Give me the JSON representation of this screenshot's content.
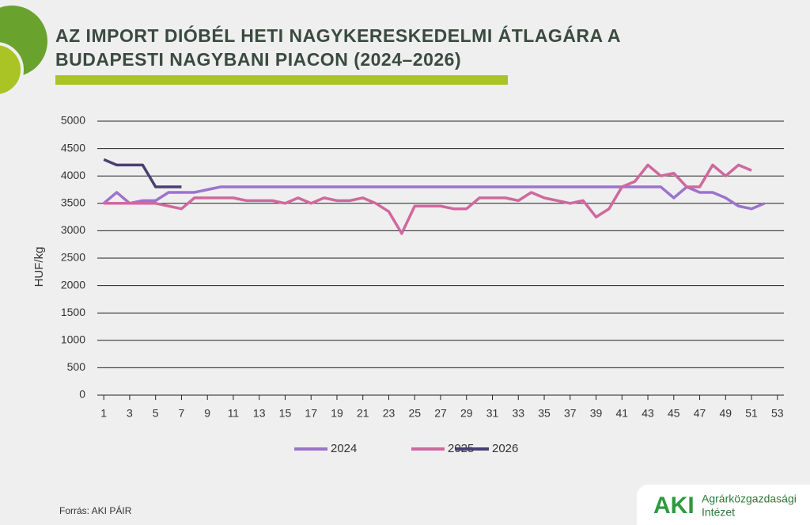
{
  "chart_data": {
    "type": "line",
    "title": "AZ IMPORT DIÓBÉL HETI NAGYKERESKEDELMI ÁTLAGÁRA A BUDAPESTI NAGYBANI PIACON (2024–2026)",
    "y_label": "HUF/kg",
    "x": [
      1,
      2,
      3,
      4,
      5,
      6,
      7,
      8,
      9,
      10,
      11,
      12,
      13,
      14,
      15,
      16,
      17,
      18,
      19,
      20,
      21,
      22,
      23,
      24,
      25,
      26,
      27,
      28,
      29,
      30,
      31,
      32,
      33,
      34,
      35,
      36,
      37,
      38,
      39,
      40,
      41,
      42,
      43,
      44,
      45,
      46,
      47,
      48,
      49,
      50,
      51,
      52,
      53
    ],
    "xlim": [
      0.5,
      53.5
    ],
    "xticks": [
      1,
      3,
      5,
      7,
      9,
      11,
      13,
      15,
      17,
      19,
      21,
      23,
      25,
      27,
      29,
      31,
      33,
      35,
      37,
      39,
      41,
      43,
      45,
      47,
      49,
      51,
      53
    ],
    "ylim": [
      0,
      5000
    ],
    "yticks": [
      0,
      500,
      1000,
      1500,
      2000,
      2500,
      3000,
      3500,
      4000,
      4500,
      5000
    ],
    "grid": true,
    "legend": "bottom",
    "series": [
      {
        "name": "2024",
        "color": "#9b74cc",
        "values": [
          3500,
          3700,
          3500,
          3550,
          3550,
          3700,
          3700,
          3700,
          3750,
          3800,
          3800,
          3800,
          3800,
          3800,
          3800,
          3800,
          3800,
          3800,
          3800,
          3800,
          3800,
          3800,
          3800,
          3800,
          3800,
          3800,
          3800,
          3800,
          3800,
          3800,
          3800,
          3800,
          3800,
          3800,
          3800,
          3800,
          3800,
          3800,
          3800,
          3800,
          3800,
          3800,
          3800,
          3800,
          3600,
          3800,
          3700,
          3700,
          3600,
          3450,
          3400,
          3500,
          null
        ]
      },
      {
        "name": "2025",
        "color": "#d0689e",
        "values": [
          3500,
          3500,
          3500,
          3500,
          3500,
          3450,
          3400,
          3600,
          3600,
          3600,
          3600,
          3550,
          3550,
          3550,
          3500,
          3600,
          3500,
          3600,
          3550,
          3550,
          3600,
          3500,
          3350,
          2950,
          3450,
          3450,
          3450,
          3400,
          3400,
          3600,
          3600,
          3600,
          3550,
          3700,
          3600,
          3550,
          3500,
          3550,
          3250,
          3400,
          3800,
          3900,
          4200,
          4000,
          4050,
          3800,
          3800,
          4200,
          4000,
          4200,
          4100,
          null,
          null
        ]
      },
      {
        "name": "2026",
        "color": "#4a3f72",
        "values": [
          4300,
          4200,
          4200,
          4200,
          3800,
          3800,
          3800,
          null,
          null,
          null,
          null,
          null,
          null,
          null,
          null,
          null,
          null,
          null,
          null,
          null,
          null,
          null,
          null,
          null,
          null,
          null,
          null,
          null,
          null,
          null,
          null,
          null,
          null,
          null,
          null,
          null,
          null,
          null,
          null,
          null,
          null,
          null,
          null,
          null,
          null,
          null,
          null,
          null,
          null,
          null,
          null,
          null,
          null
        ]
      }
    ]
  },
  "source": "Forrás: AKI PÁIR",
  "logo": {
    "abbr": "AKI",
    "line1": "Agrárközgazdasági",
    "line2": "Intézet"
  }
}
